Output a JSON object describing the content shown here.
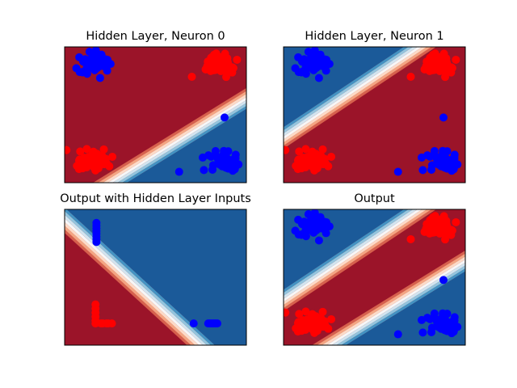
{
  "figure": {
    "colors": {
      "red_class": "#ff0000",
      "blue_class": "#0000ff",
      "region_red": "#9b1429",
      "region_blue": "#1b5a99",
      "transition": [
        "#d6604d",
        "#f4a582",
        "#fddbc7",
        "#f7f7f7",
        "#d1e5f0",
        "#92c5de",
        "#4393c3"
      ]
    }
  },
  "chart_data": [
    {
      "type": "scatter",
      "title": "Hidden Layer, Neuron 0",
      "xlim": [
        0,
        1
      ],
      "ylim": [
        0,
        1
      ],
      "ticks_visible": false,
      "background": "contour",
      "boundaries": [
        {
          "p1": [
            0.25,
            0.0
          ],
          "p2": [
            1.0,
            0.62
          ],
          "side": "below",
          "color": "blue"
        }
      ],
      "series": [
        {
          "color": "blue",
          "clusters": [
            {
              "center": [
                0.17,
                0.88
              ],
              "spread": [
                0.07,
                0.07
              ],
              "n": 60
            },
            {
              "center": [
                0.88,
                0.16
              ],
              "spread": [
                0.07,
                0.06
              ],
              "n": 60
            }
          ],
          "points": [
            [
              0.88,
              0.48
            ],
            [
              0.63,
              0.08
            ]
          ]
        },
        {
          "color": "red",
          "clusters": [
            {
              "center": [
                0.85,
                0.88
              ],
              "spread": [
                0.07,
                0.07
              ],
              "n": 60
            },
            {
              "center": [
                0.17,
                0.16
              ],
              "spread": [
                0.07,
                0.07
              ],
              "n": 60
            }
          ],
          "points": [
            [
              0.7,
              0.78
            ],
            [
              0.01,
              0.24
            ]
          ]
        }
      ]
    },
    {
      "type": "scatter",
      "title": "Hidden Layer, Neuron 1",
      "xlim": [
        0,
        1
      ],
      "ylim": [
        0,
        1
      ],
      "ticks_visible": false,
      "background": "contour",
      "boundaries": [
        {
          "p1": [
            0.0,
            0.33
          ],
          "p2": [
            0.75,
            1.0
          ],
          "side": "above",
          "color": "blue"
        }
      ],
      "series": [
        {
          "color": "blue",
          "clusters": [
            {
              "center": [
                0.17,
                0.88
              ],
              "spread": [
                0.07,
                0.07
              ],
              "n": 60
            },
            {
              "center": [
                0.88,
                0.16
              ],
              "spread": [
                0.07,
                0.06
              ],
              "n": 60
            }
          ],
          "points": [
            [
              0.88,
              0.48
            ],
            [
              0.63,
              0.08
            ]
          ]
        },
        {
          "color": "red",
          "clusters": [
            {
              "center": [
                0.85,
                0.88
              ],
              "spread": [
                0.07,
                0.07
              ],
              "n": 60
            },
            {
              "center": [
                0.17,
                0.16
              ],
              "spread": [
                0.07,
                0.07
              ],
              "n": 60
            }
          ],
          "points": [
            [
              0.7,
              0.78
            ],
            [
              0.01,
              0.24
            ]
          ]
        }
      ]
    },
    {
      "type": "scatter",
      "title": "Output with Hidden Layer Inputs",
      "xlim": [
        0,
        1
      ],
      "ylim": [
        0,
        1
      ],
      "ticks_visible": false,
      "background": "contour",
      "boundaries": [
        {
          "p1": [
            0.0,
            0.92
          ],
          "p2": [
            0.75,
            0.0
          ],
          "side": "above",
          "color": "blue"
        }
      ],
      "series": [
        {
          "color": "blue",
          "clusters": [],
          "points": [
            [
              0.175,
              0.78
            ],
            [
              0.175,
              0.8
            ],
            [
              0.175,
              0.82
            ],
            [
              0.175,
              0.84
            ],
            [
              0.175,
              0.86
            ],
            [
              0.175,
              0.88
            ],
            [
              0.175,
              0.9
            ],
            [
              0.175,
              0.76
            ],
            [
              0.71,
              0.16
            ],
            [
              0.79,
              0.16
            ],
            [
              0.8,
              0.16
            ],
            [
              0.81,
              0.16
            ],
            [
              0.82,
              0.16
            ],
            [
              0.83,
              0.16
            ],
            [
              0.84,
              0.16
            ]
          ]
        },
        {
          "color": "red",
          "clusters": [],
          "points": [
            [
              0.17,
              0.3
            ],
            [
              0.17,
              0.27
            ],
            [
              0.17,
              0.24
            ],
            [
              0.17,
              0.21
            ],
            [
              0.17,
              0.18
            ],
            [
              0.17,
              0.16
            ],
            [
              0.2,
              0.16
            ],
            [
              0.23,
              0.16
            ],
            [
              0.26,
              0.16
            ],
            [
              0.24,
              0.16
            ],
            [
              0.21,
              0.16
            ]
          ]
        }
      ]
    },
    {
      "type": "scatter",
      "title": "Output",
      "xlim": [
        0,
        1
      ],
      "ylim": [
        0,
        1
      ],
      "ticks_visible": false,
      "background": "contour",
      "boundaries": [
        {
          "p1": [
            0.0,
            0.33
          ],
          "p2": [
            0.75,
            1.0
          ],
          "side": "above",
          "color": "blue"
        },
        {
          "p1": [
            0.25,
            0.0
          ],
          "p2": [
            1.0,
            0.62
          ],
          "side": "below",
          "color": "blue"
        }
      ],
      "series": [
        {
          "color": "blue",
          "clusters": [
            {
              "center": [
                0.17,
                0.88
              ],
              "spread": [
                0.07,
                0.07
              ],
              "n": 60
            },
            {
              "center": [
                0.88,
                0.16
              ],
              "spread": [
                0.07,
                0.06
              ],
              "n": 60
            }
          ],
          "points": [
            [
              0.88,
              0.48
            ],
            [
              0.63,
              0.08
            ]
          ]
        },
        {
          "color": "red",
          "clusters": [
            {
              "center": [
                0.85,
                0.88
              ],
              "spread": [
                0.07,
                0.07
              ],
              "n": 60
            },
            {
              "center": [
                0.17,
                0.16
              ],
              "spread": [
                0.07,
                0.07
              ],
              "n": 60
            }
          ],
          "points": [
            [
              0.7,
              0.78
            ],
            [
              0.01,
              0.24
            ]
          ]
        }
      ]
    }
  ]
}
